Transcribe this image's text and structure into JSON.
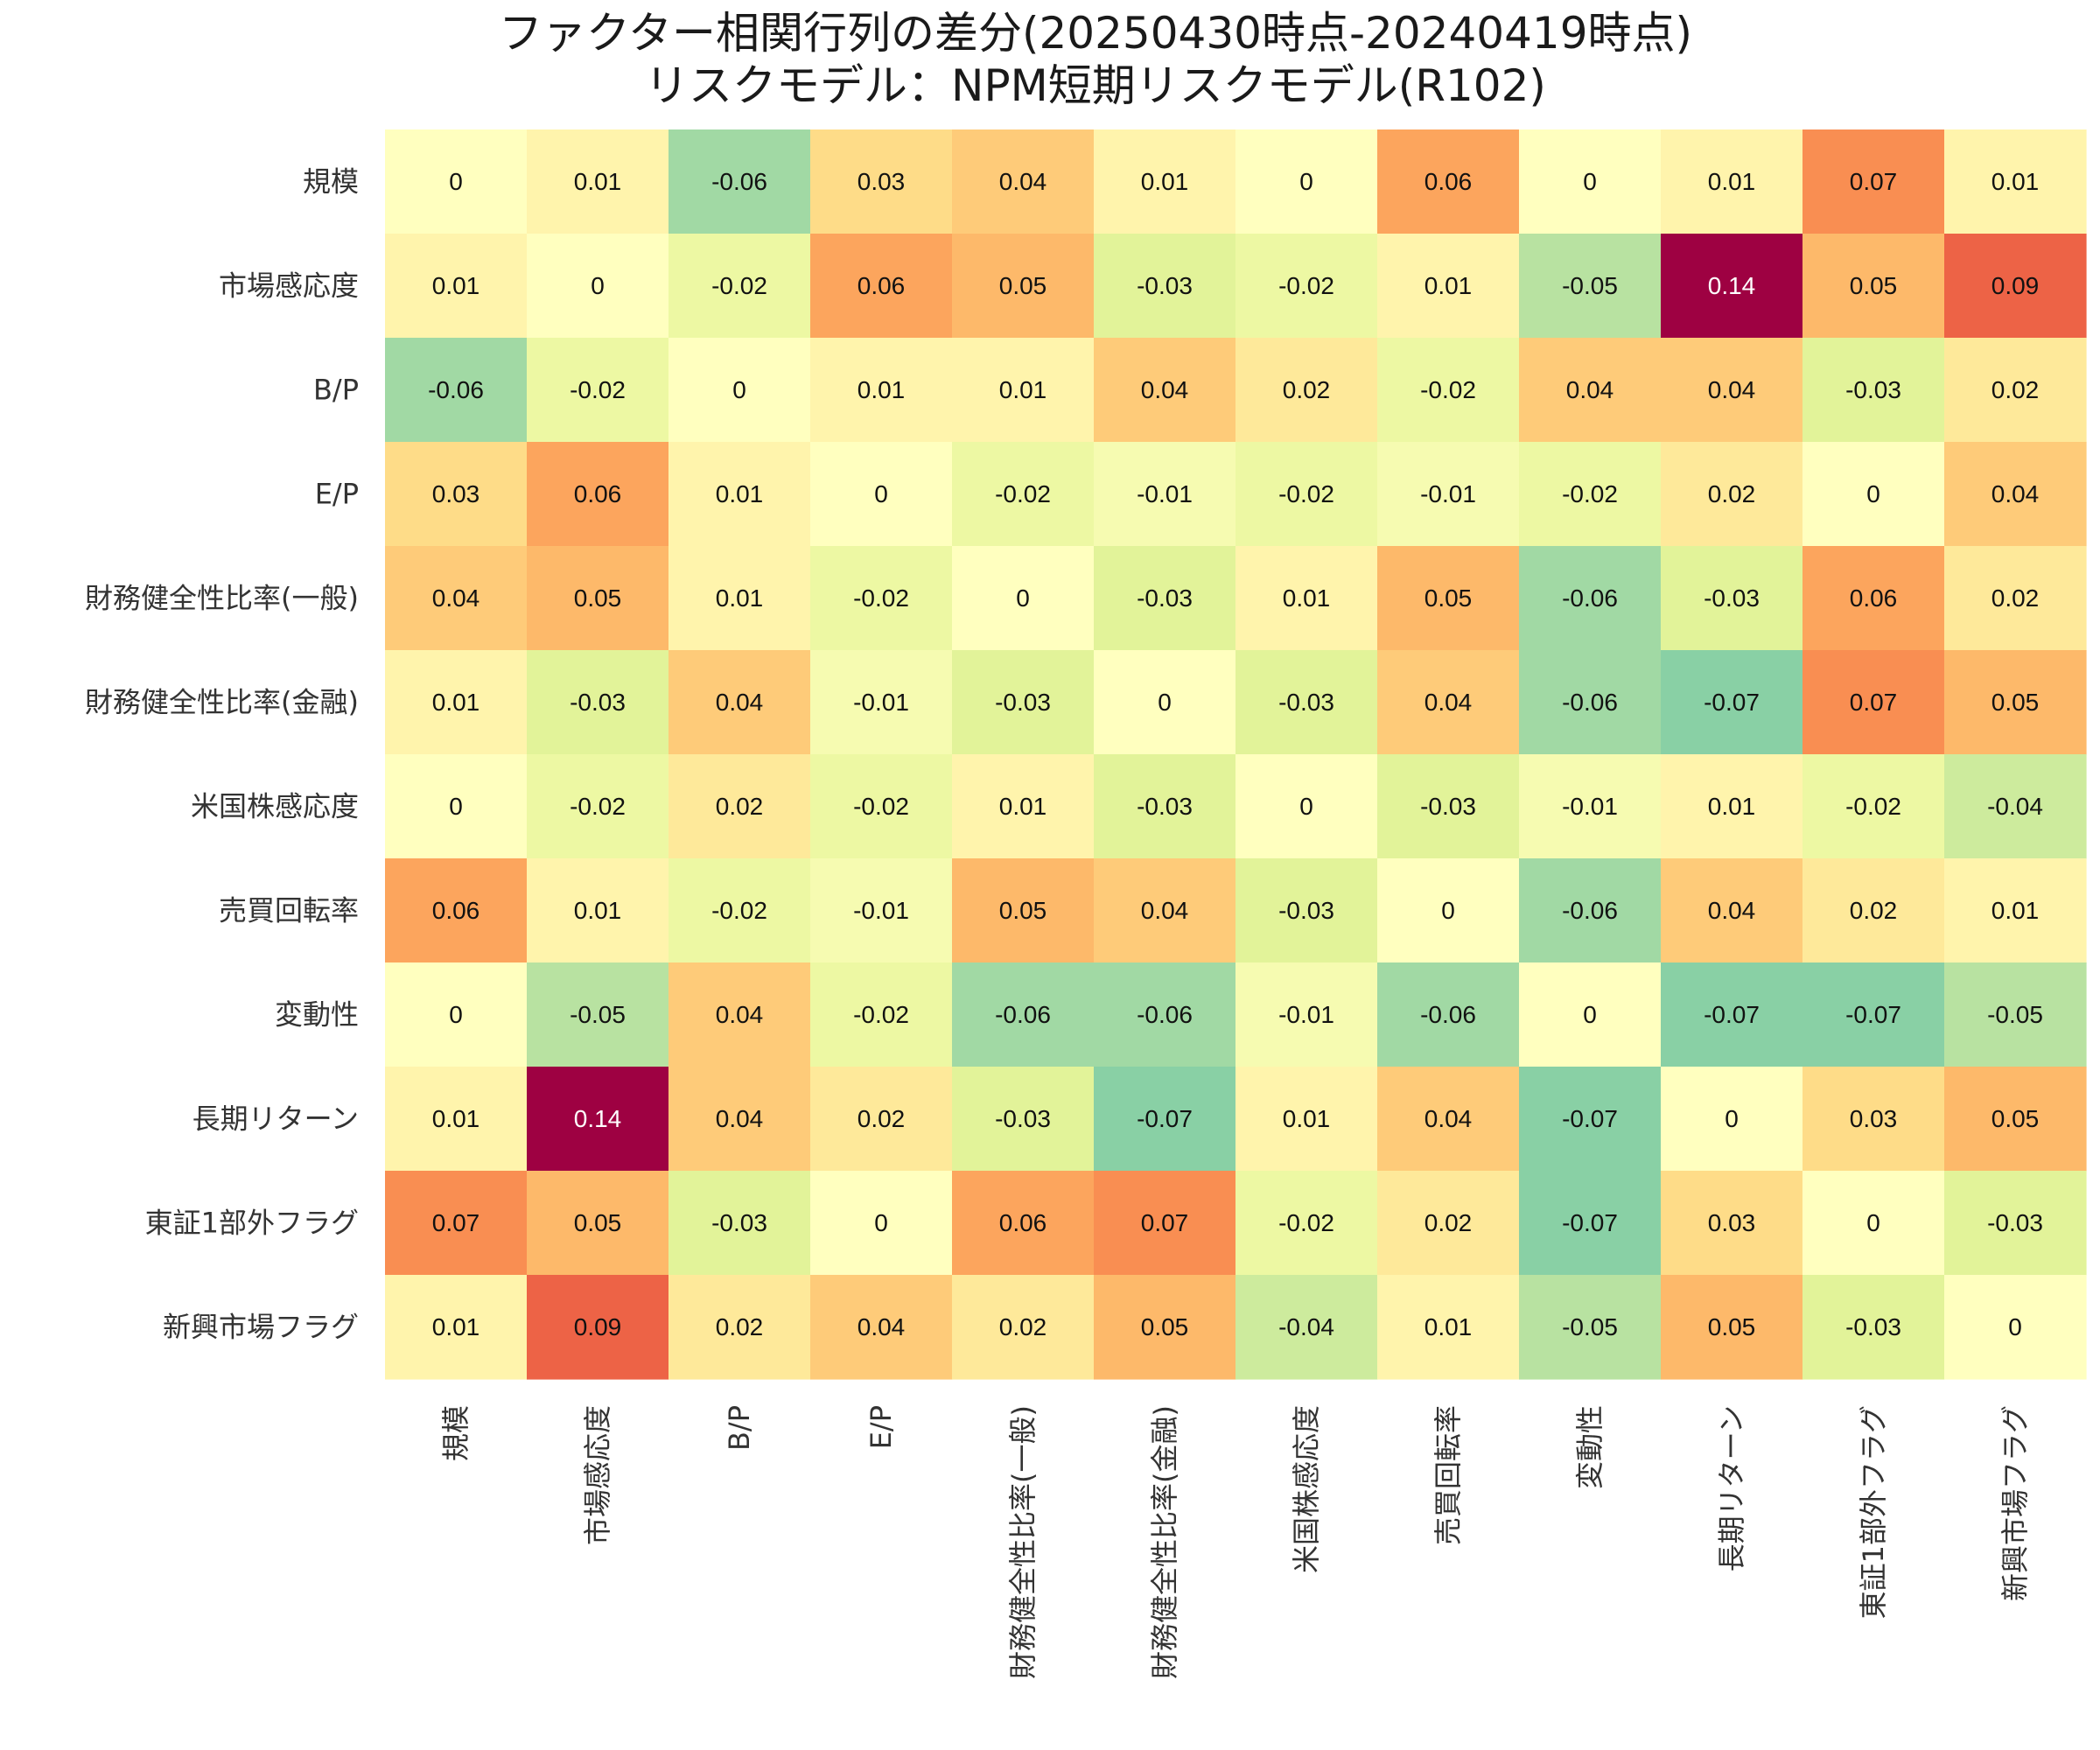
{
  "chart_data": {
    "type": "heatmap",
    "title_line1": "ファクター相関行列の差分(20250430時点-20240419時点)",
    "title_line2": "リスクモデル：NPM短期リスクモデル(R102)",
    "row_labels": [
      "規模",
      "市場感応度",
      "B/P",
      "E/P",
      "財務健全性比率(一般)",
      "財務健全性比率(金融)",
      "米国株感応度",
      "売買回転率",
      "変動性",
      "長期リターン",
      "東証1部外フラグ",
      "新興市場フラグ"
    ],
    "col_labels": [
      "規模",
      "市場感応度",
      "B/P",
      "E/P",
      "財務健全性比率(一般)",
      "財務健全性比率(金融)",
      "米国株感応度",
      "売買回転率",
      "変動性",
      "長期リターン",
      "東証1部外フラグ",
      "新興市場フラグ"
    ],
    "values": [
      [
        "0",
        "0.01",
        "-0.06",
        "0.03",
        "0.04",
        "0.01",
        "0",
        "0.06",
        "0",
        "0.01",
        "0.07",
        "0.01"
      ],
      [
        "0.01",
        "0",
        "-0.02",
        "0.06",
        "0.05",
        "-0.03",
        "-0.02",
        "0.01",
        "-0.05",
        "0.14",
        "0.05",
        "0.09"
      ],
      [
        "-0.06",
        "-0.02",
        "0",
        "0.01",
        "0.01",
        "0.04",
        "0.02",
        "-0.02",
        "0.04",
        "0.04",
        "-0.03",
        "0.02"
      ],
      [
        "0.03",
        "0.06",
        "0.01",
        "0",
        "-0.02",
        "-0.01",
        "-0.02",
        "-0.01",
        "-0.02",
        "0.02",
        "0",
        "0.04"
      ],
      [
        "0.04",
        "0.05",
        "0.01",
        "-0.02",
        "0",
        "-0.03",
        "0.01",
        "0.05",
        "-0.06",
        "-0.03",
        "0.06",
        "0.02"
      ],
      [
        "0.01",
        "-0.03",
        "0.04",
        "-0.01",
        "-0.03",
        "0",
        "-0.03",
        "0.04",
        "-0.06",
        "-0.07",
        "0.07",
        "0.05"
      ],
      [
        "0",
        "-0.02",
        "0.02",
        "-0.02",
        "0.01",
        "-0.03",
        "0",
        "-0.03",
        "-0.01",
        "0.01",
        "-0.02",
        "-0.04"
      ],
      [
        "0.06",
        "0.01",
        "-0.02",
        "-0.01",
        "0.05",
        "0.04",
        "-0.03",
        "0",
        "-0.06",
        "0.04",
        "0.02",
        "0.01"
      ],
      [
        "0",
        "-0.05",
        "0.04",
        "-0.02",
        "-0.06",
        "-0.06",
        "-0.01",
        "-0.06",
        "0",
        "-0.07",
        "-0.07",
        "-0.05"
      ],
      [
        "0.01",
        "0.14",
        "0.04",
        "0.02",
        "-0.03",
        "-0.07",
        "0.01",
        "0.04",
        "-0.07",
        "0",
        "0.03",
        "0.05"
      ],
      [
        "0.07",
        "0.05",
        "-0.03",
        "0",
        "0.06",
        "0.07",
        "-0.02",
        "0.02",
        "-0.07",
        "0.03",
        "0",
        "-0.03"
      ],
      [
        "0.01",
        "0.09",
        "0.02",
        "0.04",
        "0.02",
        "0.05",
        "-0.04",
        "0.01",
        "-0.05",
        "0.05",
        "-0.03",
        "0"
      ]
    ],
    "colormap": "Spectral_r",
    "vmin": -0.14,
    "vmax": 0.14,
    "colorbar": false,
    "grid": false
  }
}
